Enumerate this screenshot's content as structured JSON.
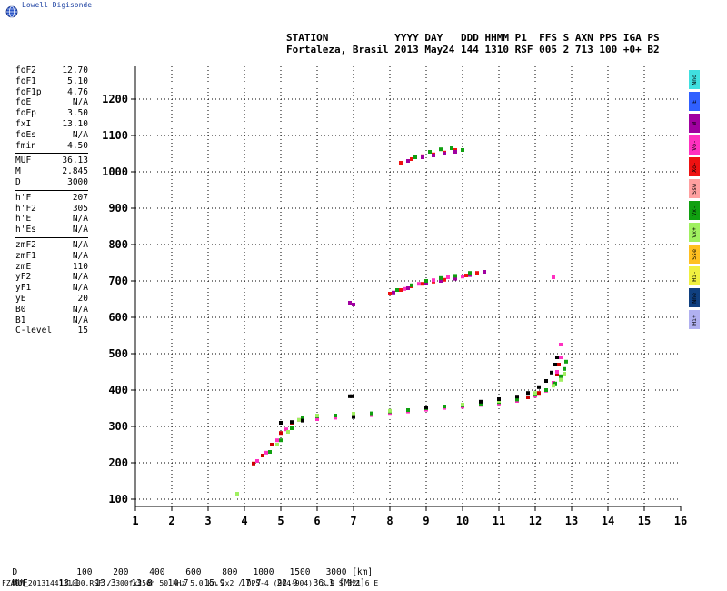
{
  "header": {
    "brand": "Lowell Digisonde",
    "line1": "STATION           YYYY DAY   DDD HHMM P1  FFS S AXN PPS IGA PS",
    "line2": "Fortaleza, Brasil 2013 May24 144 1310 RSF 005 2 713 100 +0+ B2"
  },
  "params": {
    "group1": [
      {
        "label": "foF2",
        "value": "12.70"
      },
      {
        "label": "foF1",
        "value": "5.10"
      },
      {
        "label": "foF1p",
        "value": "4.76"
      },
      {
        "label": "foE",
        "value": "N/A"
      },
      {
        "label": "foEp",
        "value": "3.50"
      },
      {
        "label": "fxI",
        "value": "13.10"
      },
      {
        "label": "foEs",
        "value": "N/A"
      },
      {
        "label": "fmin",
        "value": "4.50"
      }
    ],
    "group2": [
      {
        "label": "MUF",
        "value": "36.13"
      },
      {
        "label": "M",
        "value": "2.845"
      },
      {
        "label": "D",
        "value": "3000"
      }
    ],
    "group3": [
      {
        "label": "h'F",
        "value": "207"
      },
      {
        "label": "h'F2",
        "value": "305"
      },
      {
        "label": "h'E",
        "value": "N/A"
      },
      {
        "label": "h'Es",
        "value": "N/A"
      }
    ],
    "group4": [
      {
        "label": "zmF2",
        "value": "N/A"
      },
      {
        "label": "zmF1",
        "value": "N/A"
      },
      {
        "label": "zmE",
        "value": "110"
      },
      {
        "label": "yF2",
        "value": "N/A"
      },
      {
        "label": "yF1",
        "value": "N/A"
      },
      {
        "label": "yE",
        "value": "20"
      },
      {
        "label": "B0",
        "value": "N/A"
      },
      {
        "label": "B1",
        "value": "N/A"
      },
      {
        "label": "C-level",
        "value": "15"
      }
    ]
  },
  "legend": [
    {
      "label": "Nno",
      "color": "#40e0e0"
    },
    {
      "label": "E",
      "color": "#3060ff"
    },
    {
      "label": "W",
      "color": "#a000a0"
    },
    {
      "label": "Vo-",
      "color": "#ff30c0"
    },
    {
      "label": "Xo-",
      "color": "#ee1111"
    },
    {
      "label": "Ssw",
      "color": "#ffa0a0"
    },
    {
      "label": "Vx-",
      "color": "#10a010"
    },
    {
      "label": "Vx+",
      "color": "#a0f060"
    },
    {
      "label": "Sse",
      "color": "#ffc020"
    },
    {
      "label": "Hi-",
      "color": "#f0f040"
    },
    {
      "label": "Nne",
      "color": "#104080"
    },
    {
      "label": "Hi+",
      "color": "#b0b0f0"
    }
  ],
  "bottom": {
    "d_label": "D",
    "d_values": [
      "100",
      "200",
      "400",
      "600",
      "800",
      "1000",
      "1500",
      "3000"
    ],
    "d_unit": "[km]",
    "muf_label": "MUF",
    "muf_values": [
      "13.1",
      "13.3",
      "13.8",
      "14.7",
      "15.9",
      "17.7",
      "22.9",
      "36.1"
    ],
    "muf_unit": "[MHz]",
    "footer": "FZA0M_2013144131000.RSF / 300fx256h 50 kHz 5.0 km 2x2 / DPS-4 (904-904)  3.9 S 321.6 E"
  },
  "chart_data": {
    "type": "scatter",
    "xlim": [
      1,
      16
    ],
    "ylim": [
      80,
      1290
    ],
    "xticks": [
      1,
      2,
      3,
      4,
      5,
      6,
      7,
      8,
      9,
      10,
      11,
      12,
      13,
      14,
      15,
      16
    ],
    "yticks": [
      100,
      200,
      300,
      400,
      500,
      600,
      700,
      800,
      900,
      1000,
      1100,
      1200
    ],
    "grid": true,
    "series": [
      {
        "color": "#cc0000",
        "points": [
          [
            4.25,
            198
          ],
          [
            4.5,
            220
          ],
          [
            4.75,
            250
          ],
          [
            5.0,
            282
          ],
          [
            5.3,
            310
          ],
          [
            5.6,
            322
          ],
          [
            6.0,
            322
          ],
          [
            6.5,
            325
          ],
          [
            7.0,
            328
          ],
          [
            7.5,
            332
          ],
          [
            8.0,
            338
          ],
          [
            8.5,
            342
          ],
          [
            9.0,
            347
          ],
          [
            9.5,
            352
          ],
          [
            10.0,
            355
          ],
          [
            10.5,
            360
          ],
          [
            11.0,
            365
          ],
          [
            11.5,
            372
          ],
          [
            11.8,
            380
          ],
          [
            12.1,
            392
          ],
          [
            12.3,
            400
          ],
          [
            12.5,
            420
          ],
          [
            12.6,
            445
          ],
          [
            12.65,
            470
          ]
        ]
      },
      {
        "color": "#ff30c0",
        "points": [
          [
            4.35,
            205
          ],
          [
            4.6,
            228
          ],
          [
            4.9,
            262
          ],
          [
            5.15,
            292
          ],
          [
            5.5,
            318
          ],
          [
            6.0,
            320
          ],
          [
            6.5,
            324
          ],
          [
            7.0,
            327
          ],
          [
            7.5,
            331
          ],
          [
            8.0,
            337
          ],
          [
            8.5,
            341
          ],
          [
            9.0,
            346
          ],
          [
            9.5,
            351
          ],
          [
            10.0,
            354
          ],
          [
            10.5,
            359
          ],
          [
            11.0,
            363
          ],
          [
            11.5,
            370
          ],
          [
            12.0,
            384
          ],
          [
            12.3,
            398
          ],
          [
            12.5,
            420
          ],
          [
            12.6,
            450
          ],
          [
            12.7,
            490
          ],
          [
            12.7,
            525
          ]
        ]
      },
      {
        "color": "#10a010",
        "points": [
          [
            4.7,
            230
          ],
          [
            5.0,
            262
          ],
          [
            5.3,
            295
          ],
          [
            5.6,
            325
          ],
          [
            6.0,
            328
          ],
          [
            6.5,
            330
          ],
          [
            7.0,
            333
          ],
          [
            7.5,
            336
          ],
          [
            8.0,
            341
          ],
          [
            8.5,
            345
          ],
          [
            9.0,
            350
          ],
          [
            9.5,
            355
          ],
          [
            10.0,
            358
          ],
          [
            10.5,
            362
          ],
          [
            11.0,
            367
          ],
          [
            11.5,
            374
          ],
          [
            12.0,
            388
          ],
          [
            12.3,
            400
          ],
          [
            12.55,
            418
          ],
          [
            12.7,
            438
          ],
          [
            12.8,
            458
          ],
          [
            12.85,
            478
          ]
        ]
      },
      {
        "color": "#a0f060",
        "points": [
          [
            4.9,
            250
          ],
          [
            5.2,
            285
          ],
          [
            5.5,
            318
          ],
          [
            6.0,
            330
          ],
          [
            7.0,
            335
          ],
          [
            8.0,
            343
          ],
          [
            9.0,
            352
          ],
          [
            10.0,
            360
          ],
          [
            11.0,
            370
          ],
          [
            12.0,
            392
          ],
          [
            12.5,
            412
          ],
          [
            12.7,
            428
          ],
          [
            12.8,
            445
          ],
          [
            3.8,
            115
          ]
        ]
      },
      {
        "color": "#000000",
        "points": [
          [
            5.0,
            310
          ],
          [
            5.3,
            312
          ],
          [
            5.6,
            316
          ],
          [
            7.0,
            326
          ],
          [
            9.0,
            352
          ],
          [
            10.5,
            368
          ],
          [
            11.0,
            375
          ],
          [
            11.5,
            382
          ],
          [
            11.8,
            392
          ],
          [
            12.1,
            408
          ],
          [
            12.3,
            425
          ],
          [
            12.45,
            448
          ],
          [
            12.55,
            470
          ],
          [
            12.6,
            490
          ],
          [
            6.9,
            383
          ],
          [
            6.95,
            383
          ]
        ]
      },
      {
        "color": "#ee1111",
        "points": [
          [
            8.0,
            665
          ],
          [
            8.3,
            675
          ],
          [
            8.6,
            685
          ],
          [
            8.9,
            692
          ],
          [
            9.2,
            698
          ],
          [
            9.5,
            703
          ],
          [
            9.8,
            708
          ],
          [
            10.1,
            715
          ],
          [
            10.4,
            722
          ]
        ]
      },
      {
        "color": "#a000a0",
        "points": [
          [
            8.1,
            668
          ],
          [
            8.5,
            680
          ],
          [
            9.0,
            695
          ],
          [
            9.4,
            700
          ],
          [
            9.8,
            706
          ],
          [
            10.2,
            716
          ],
          [
            10.6,
            725
          ],
          [
            6.9,
            640
          ],
          [
            7.0,
            635
          ]
        ]
      },
      {
        "color": "#10a010",
        "points": [
          [
            8.2,
            675
          ],
          [
            8.6,
            688
          ],
          [
            9.0,
            700
          ],
          [
            9.4,
            708
          ],
          [
            9.8,
            714
          ],
          [
            10.2,
            722
          ]
        ]
      },
      {
        "color": "#ff30c0",
        "points": [
          [
            8.4,
            678
          ],
          [
            8.8,
            692
          ],
          [
            9.2,
            702
          ],
          [
            9.6,
            710
          ],
          [
            10.0,
            712
          ],
          [
            12.5,
            710
          ]
        ]
      },
      {
        "color": "#ee1111",
        "points": [
          [
            8.3,
            1025
          ],
          [
            8.6,
            1035
          ],
          [
            8.9,
            1043
          ],
          [
            9.2,
            1048
          ],
          [
            9.5,
            1053
          ],
          [
            9.8,
            1060
          ]
        ]
      },
      {
        "color": "#a000a0",
        "points": [
          [
            8.5,
            1030
          ],
          [
            8.9,
            1040
          ],
          [
            9.2,
            1045
          ],
          [
            9.5,
            1050
          ],
          [
            9.8,
            1055
          ]
        ]
      },
      {
        "color": "#10a010",
        "points": [
          [
            8.7,
            1040
          ],
          [
            9.1,
            1055
          ],
          [
            9.4,
            1062
          ],
          [
            9.7,
            1065
          ],
          [
            10.0,
            1060
          ]
        ]
      }
    ]
  }
}
